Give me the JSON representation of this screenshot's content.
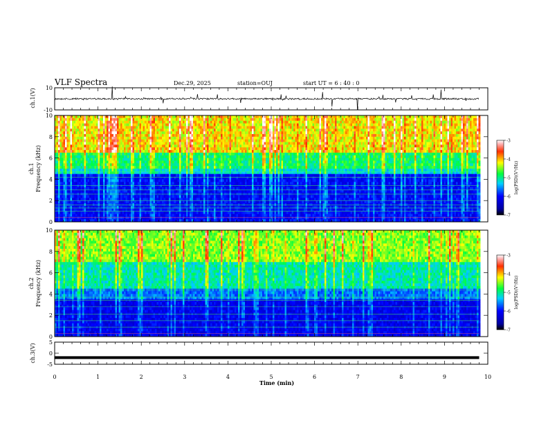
{
  "header": {
    "title": "VLF Spectra",
    "date": "Dec.29, 2025",
    "station": "station=OUJ",
    "start_ut": "start  UT =  6 : 40 : 0"
  },
  "chart_data": [
    {
      "type": "line",
      "panel": "ch1_waveform",
      "ylabel": "ch.1(V)",
      "ylim": [
        -10,
        10
      ],
      "y_ticks": [
        "10",
        "-10"
      ],
      "xlim": [
        0,
        10
      ],
      "baseline_value": 0,
      "color": "#000000"
    },
    {
      "type": "heatmap",
      "panel": "ch1_spectrogram",
      "ylabel": "ch.1\nFrequency (kHz)",
      "ylabel_line1": "ch.1",
      "ylabel_line2": "Frequency (kHz)",
      "ylim": [
        0,
        10
      ],
      "y_ticks": [
        "0",
        "2",
        "4",
        "6",
        "8",
        "10"
      ],
      "xlim": [
        0,
        10
      ],
      "data_end_min": 9.8,
      "colorbar": {
        "label": "log(PSD)(V²/Hz)",
        "range": [
          -7,
          -3
        ],
        "ticks": [
          "-3",
          "-4",
          "-5",
          "-6",
          "-7"
        ]
      }
    },
    {
      "type": "heatmap",
      "panel": "ch2_spectrogram",
      "ylabel": "ch.2\nFrequency (kHz)",
      "ylabel_line1": "ch.2",
      "ylabel_line2": "Frequency (kHz)",
      "ylim": [
        0,
        10
      ],
      "y_ticks": [
        "0",
        "2",
        "4",
        "6",
        "8",
        "10"
      ],
      "xlim": [
        0,
        10
      ],
      "data_end_min": 9.8,
      "colorbar": {
        "label": "log(PSD)(V²/Hz)",
        "range": [
          -7,
          -3
        ],
        "ticks": [
          "-3",
          "-4",
          "-5",
          "-6",
          "-7"
        ]
      }
    },
    {
      "type": "line",
      "panel": "ch3_waveform",
      "ylabel": "ch.3(V)",
      "ylim": [
        -5,
        5
      ],
      "y_ticks": [
        "5",
        "0",
        "-5"
      ],
      "xlim": [
        0,
        10
      ],
      "baseline_value": -2,
      "color": "#000000"
    }
  ],
  "x_axis": {
    "label": "Time  (min)",
    "ticks": [
      "0",
      "1",
      "2",
      "3",
      "4",
      "5",
      "6",
      "7",
      "8",
      "9",
      "10"
    ]
  }
}
